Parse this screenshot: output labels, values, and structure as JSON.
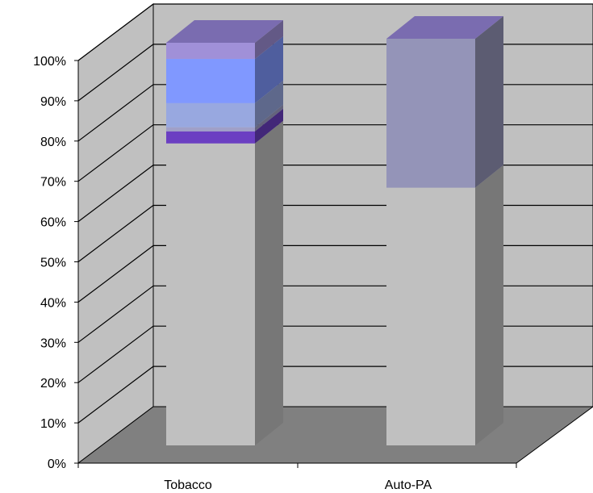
{
  "chart_data": {
    "type": "bar",
    "stacked": true,
    "three_d": true,
    "title": "",
    "xlabel": "",
    "ylabel": "",
    "ylim": [
      0,
      100
    ],
    "grid": true,
    "legend": "none",
    "categories": [
      "Tobacco",
      "Auto-PA"
    ],
    "y_ticks": [
      "0%",
      "10%",
      "20%",
      "30%",
      "40%",
      "50%",
      "60%",
      "70%",
      "80%",
      "90%",
      "100%"
    ],
    "series": [
      {
        "values": [
          75,
          64
        ],
        "color": "#c0c0c0"
      },
      {
        "values": [
          3,
          0
        ],
        "color": "#6b3fc2"
      },
      {
        "values": [
          1,
          0
        ],
        "color": "#a0a0c8"
      },
      {
        "values": [
          6,
          0
        ],
        "color": "#98a8e0"
      },
      {
        "values": [
          11,
          0
        ],
        "color": "#8098ff"
      },
      {
        "values": [
          4,
          37
        ],
        "color": "#a090d8"
      }
    ],
    "series_alt_colors": [
      null,
      null,
      null,
      null,
      null,
      "#9494b8"
    ]
  },
  "colors": {
    "wall": "#c0c0c0",
    "floor": "#808080",
    "top_face": "#7a6cb0",
    "axis": "#000000"
  }
}
